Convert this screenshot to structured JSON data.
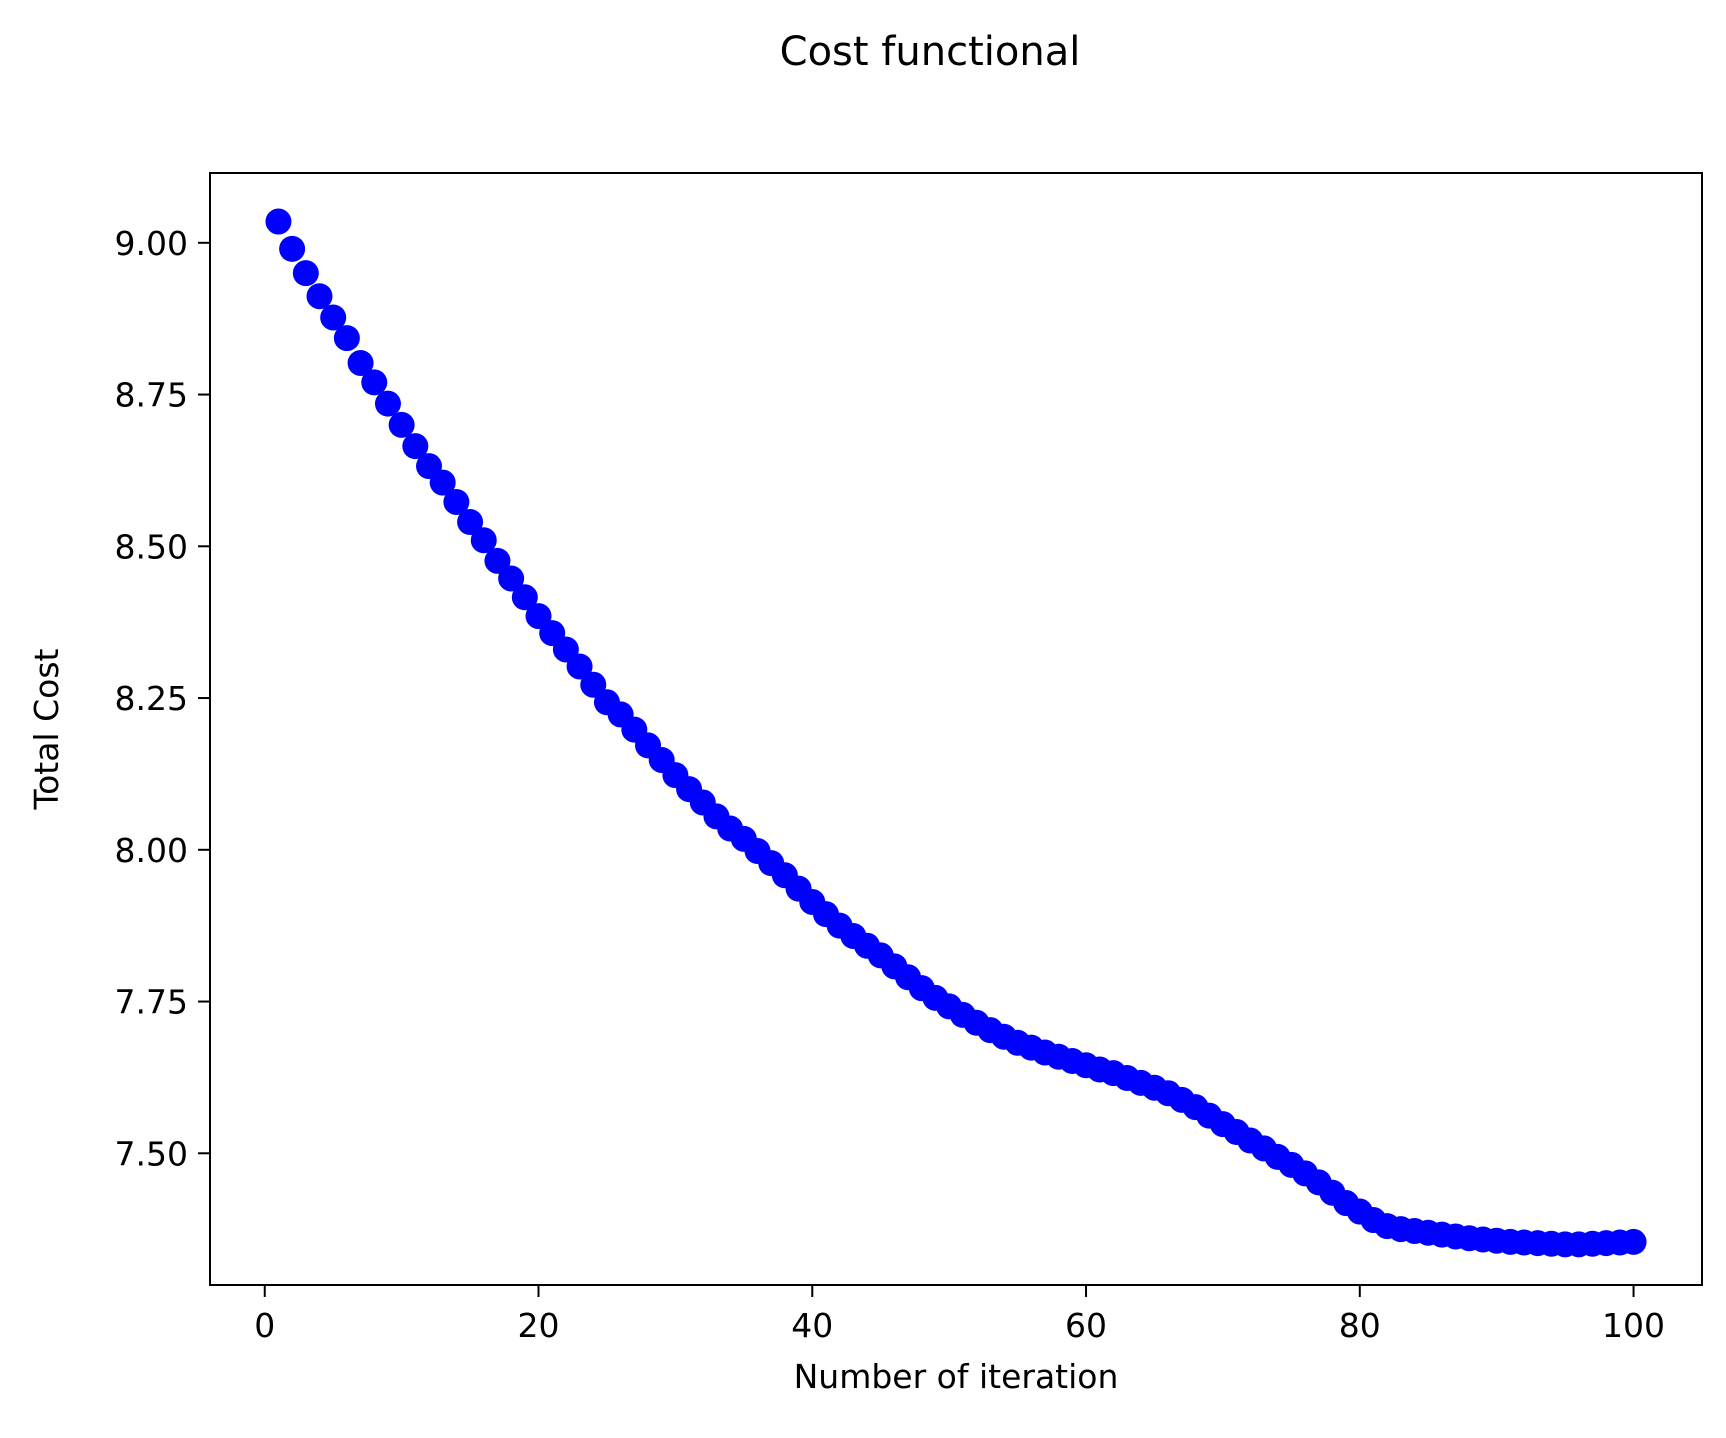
{
  "chart_data": {
    "type": "scatter",
    "title": "Cost functional",
    "xlabel": "Number of iteration",
    "ylabel": "Total Cost",
    "xlim": [
      -4,
      105
    ],
    "ylim": [
      7.283,
      9.115
    ],
    "xticks": [
      0,
      20,
      40,
      60,
      80,
      100
    ],
    "xtick_labels": [
      "0",
      "20",
      "40",
      "60",
      "80",
      "100"
    ],
    "yticks": [
      7.5,
      7.75,
      8.0,
      8.25,
      8.5,
      8.75,
      9.0
    ],
    "ytick_labels": [
      "7.50",
      "7.75",
      "8.00",
      "8.25",
      "8.50",
      "8.75",
      "9.00"
    ],
    "grid": false,
    "marker_color": "#0000ff",
    "series": [
      {
        "x": [
          1,
          2,
          3,
          4,
          5,
          6,
          7,
          8,
          9,
          10,
          11,
          12,
          13,
          14,
          15,
          16,
          17,
          18,
          19,
          20,
          21,
          22,
          23,
          24,
          25,
          26,
          27,
          28,
          29,
          30,
          31,
          32,
          33,
          34,
          35,
          36,
          37,
          38,
          39,
          40,
          41,
          42,
          43,
          44,
          45,
          46,
          47,
          48,
          49,
          50,
          51,
          52,
          53,
          54,
          55,
          56,
          57,
          58,
          59,
          60,
          61,
          62,
          63,
          64,
          65,
          66,
          67,
          68,
          69,
          70,
          71,
          72,
          73,
          74,
          75,
          76,
          77,
          78,
          79,
          80,
          81,
          82,
          83,
          84,
          85,
          86,
          87,
          88,
          89,
          90,
          91,
          92,
          93,
          94,
          95,
          96,
          97,
          98,
          99,
          100
        ],
        "values": [
          9.035,
          8.99,
          8.95,
          8.912,
          8.877,
          8.843,
          8.802,
          8.77,
          8.735,
          8.7,
          8.665,
          8.632,
          8.605,
          8.573,
          8.54,
          8.51,
          8.476,
          8.447,
          8.416,
          8.385,
          8.357,
          8.33,
          8.302,
          8.272,
          8.243,
          8.223,
          8.198,
          8.172,
          8.148,
          8.123,
          8.1,
          8.078,
          8.055,
          8.035,
          8.018,
          7.998,
          7.978,
          7.958,
          7.936,
          7.914,
          7.894,
          7.875,
          7.858,
          7.842,
          7.826,
          7.808,
          7.79,
          7.772,
          7.756,
          7.742,
          7.728,
          7.715,
          7.703,
          7.692,
          7.682,
          7.674,
          7.666,
          7.659,
          7.652,
          7.645,
          7.638,
          7.632,
          7.624,
          7.616,
          7.608,
          7.599,
          7.588,
          7.576,
          7.562,
          7.548,
          7.535,
          7.521,
          7.508,
          7.494,
          7.481,
          7.467,
          7.452,
          7.435,
          7.418,
          7.404,
          7.39,
          7.38,
          7.375,
          7.372,
          7.369,
          7.366,
          7.363,
          7.36,
          7.358,
          7.356,
          7.354,
          7.353,
          7.352,
          7.351,
          7.35,
          7.35,
          7.351,
          7.352,
          7.353,
          7.354
        ]
      }
    ]
  }
}
